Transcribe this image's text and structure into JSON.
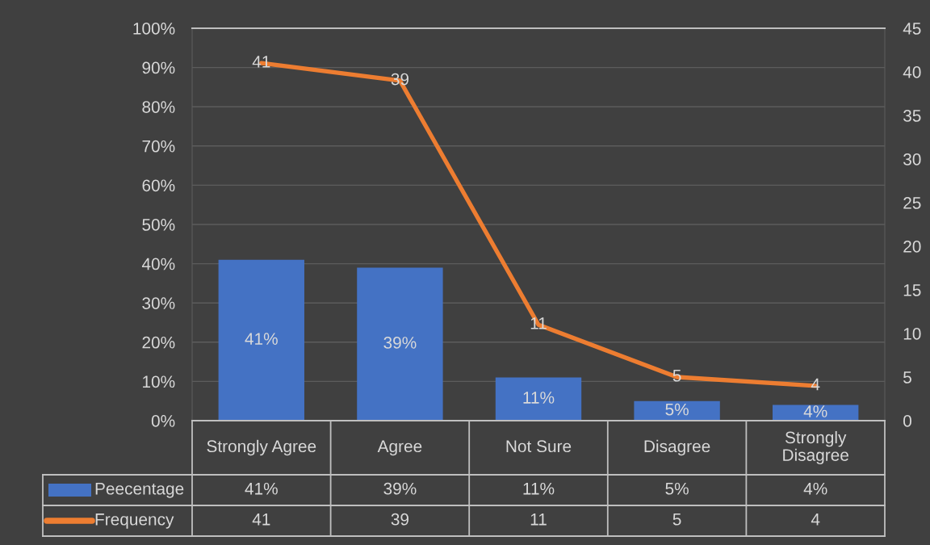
{
  "chart_data": {
    "type": "bar",
    "categories": [
      "Strongly Agree",
      "Agree",
      "Not Sure",
      "Disagree",
      "Strongly Disagree"
    ],
    "series": [
      {
        "name": "Peecentage",
        "color": "#4472c4",
        "values": [
          41,
          39,
          11,
          5,
          4
        ],
        "value_labels": [
          "41%",
          "39%",
          "11%",
          "5%",
          "4%"
        ]
      },
      {
        "name": "Frequency",
        "type": "line",
        "axis": "y2",
        "color": "#ed7d31",
        "values": [
          41,
          39,
          11,
          5,
          4
        ],
        "value_labels": [
          "41",
          "39",
          "11",
          "5",
          "4"
        ]
      }
    ],
    "ylim": [
      0,
      100
    ],
    "yticks": [
      {
        "value": 0,
        "label": "0%"
      },
      {
        "value": 10,
        "label": "10%"
      },
      {
        "value": 20,
        "label": "20%"
      },
      {
        "value": 30,
        "label": "30%"
      },
      {
        "value": 40,
        "label": "40%"
      },
      {
        "value": 50,
        "label": "50%"
      },
      {
        "value": 60,
        "label": "60%"
      },
      {
        "value": 70,
        "label": "70%"
      },
      {
        "value": 80,
        "label": "80%"
      },
      {
        "value": 90,
        "label": "90%"
      },
      {
        "value": 100,
        "label": "100%"
      }
    ],
    "y2lim": [
      0,
      45
    ],
    "y2ticks": [
      0,
      5,
      10,
      15,
      20,
      25,
      30,
      35,
      40,
      45
    ],
    "grid": "y",
    "legend": "bottom",
    "line_style": "solid"
  }
}
